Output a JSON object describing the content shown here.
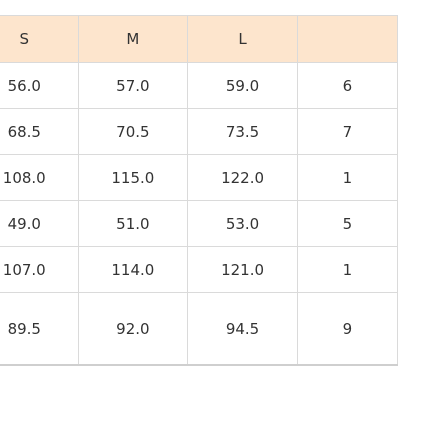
{
  "table": {
    "headers": [
      "S",
      "M",
      "L",
      ""
    ],
    "rows": [
      [
        "56.0",
        "57.0",
        "59.0",
        "6"
      ],
      [
        "68.5",
        "70.5",
        "73.5",
        "7"
      ],
      [
        "108.0",
        "115.0",
        "122.0",
        "1"
      ],
      [
        "49.0",
        "51.0",
        "53.0",
        "5"
      ],
      [
        "107.0",
        "114.0",
        "121.0",
        "1"
      ],
      [
        "89.5",
        "92.0",
        "94.5",
        "9"
      ]
    ]
  },
  "colors": {
    "header_background": "#fde5cd",
    "border": "#dadada",
    "text": "#333333"
  }
}
